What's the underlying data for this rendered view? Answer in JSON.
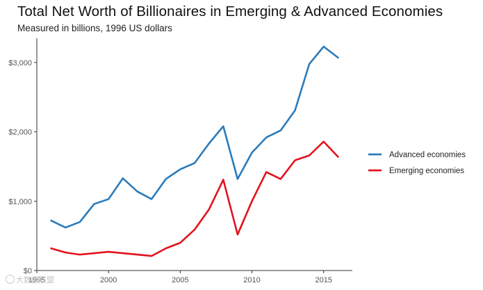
{
  "chart_data": {
    "type": "line",
    "title": "Total Net Worth of Billionaires in Emerging & Advanced Economies",
    "subtitle": "Measured in billions, 1996 US dollars",
    "xlabel": "",
    "ylabel": "",
    "xlim": [
      1995,
      2017
    ],
    "ylim": [
      0,
      3350
    ],
    "x_ticks": [
      1995,
      2000,
      2005,
      2010,
      2015
    ],
    "x_tick_labels": [
      "1995",
      "2000",
      "2005",
      "2010",
      "2015"
    ],
    "y_ticks": [
      0,
      1000,
      2000,
      3000
    ],
    "y_tick_labels": [
      "$0",
      "$1,000",
      "$2,000",
      "$3,000"
    ],
    "grid": false,
    "legend_position": "right",
    "x": [
      1996,
      1997,
      1998,
      1999,
      2000,
      2001,
      2002,
      2003,
      2004,
      2005,
      2006,
      2007,
      2008,
      2009,
      2010,
      2011,
      2012,
      2013,
      2014,
      2015,
      2016
    ],
    "series": [
      {
        "name": "Advanced economies",
        "color": "#2b7bba",
        "values": [
          720,
          620,
          700,
          960,
          1030,
          1330,
          1140,
          1030,
          1320,
          1460,
          1550,
          1830,
          2080,
          1320,
          1700,
          1920,
          2020,
          2310,
          2980,
          3230,
          3070
        ]
      },
      {
        "name": "Emerging economies",
        "color": "#e3121c",
        "values": [
          320,
          260,
          230,
          250,
          270,
          250,
          230,
          210,
          320,
          400,
          590,
          880,
          1310,
          520,
          1000,
          1420,
          1320,
          1590,
          1660,
          1860,
          1640
        ]
      }
    ]
  },
  "watermark": {
    "text": "大数据联盟",
    "icon": "watermark-logo-icon"
  }
}
